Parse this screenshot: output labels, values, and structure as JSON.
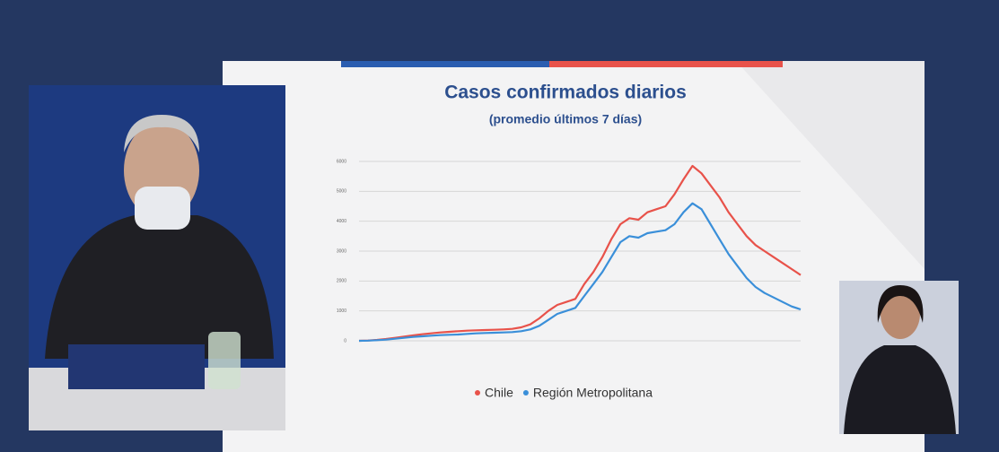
{
  "chart_data": {
    "type": "line",
    "title": "Casos confirmados diarios",
    "subtitle": "(promedio últimos 7 días)",
    "categories": [
      null,
      null,
      null,
      null,
      null,
      null,
      null,
      null,
      null,
      null,
      null,
      null,
      null,
      null,
      null,
      null,
      null,
      null,
      null,
      null,
      null,
      null,
      null,
      null,
      null,
      null,
      null,
      null,
      null,
      null,
      null,
      null,
      null,
      null,
      null,
      null,
      null,
      null,
      null,
      null,
      null,
      null,
      null,
      null,
      null,
      null,
      null,
      null,
      null,
      null
    ],
    "series": [
      {
        "name": "Chile",
        "color": "#e8524a",
        "values": [
          0,
          10,
          30,
          60,
          100,
          140,
          180,
          220,
          250,
          280,
          300,
          320,
          340,
          350,
          360,
          370,
          380,
          400,
          450,
          550,
          750,
          1000,
          1200,
          1300,
          1400,
          1900,
          2300,
          2800,
          3400,
          3900,
          4100,
          4050,
          4300,
          4400,
          4500,
          4900,
          5400,
          5850,
          5600,
          5200,
          4800,
          4300,
          3900,
          3500,
          3200,
          3000,
          2800,
          2600,
          2400,
          2200
        ]
      },
      {
        "name": "Región Metropolitana",
        "color": "#3a8fd9",
        "values": [
          0,
          5,
          20,
          40,
          70,
          100,
          130,
          150,
          170,
          190,
          200,
          210,
          230,
          250,
          260,
          270,
          280,
          290,
          320,
          380,
          500,
          700,
          900,
          1000,
          1100,
          1500,
          1900,
          2300,
          2800,
          3300,
          3500,
          3450,
          3600,
          3650,
          3700,
          3900,
          4300,
          4600,
          4400,
          3900,
          3400,
          2900,
          2500,
          2100,
          1800,
          1600,
          1450,
          1300,
          1150,
          1050
        ]
      }
    ],
    "ylim": [
      0,
      6000
    ],
    "yticks": [
      0,
      1000,
      2000,
      3000,
      4000,
      5000,
      6000
    ],
    "grid": true
  }
}
